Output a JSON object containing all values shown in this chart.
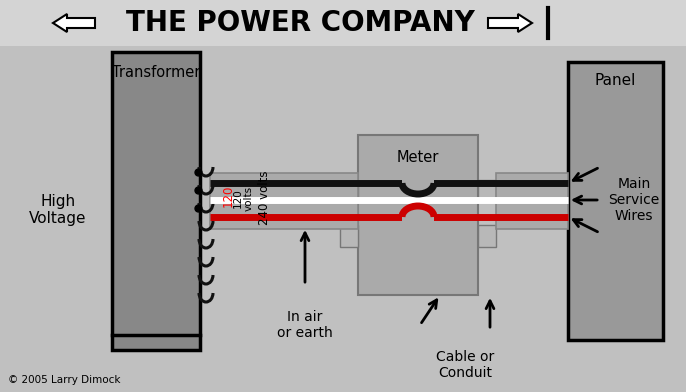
{
  "bg_color": "#c0c0c0",
  "title_bg": "#d4d4d4",
  "title_text": "THE POWER COMPANY",
  "title_fontsize": 20,
  "transformer_label": "Transformer",
  "high_voltage_label": "High\nVoltage",
  "panel_label": "Panel",
  "meter_label": "Meter",
  "main_service_label": "Main\nService\nWires",
  "label_120a": "120",
  "label_120b": "120\nvolts",
  "label_240": "240 volts",
  "label_in_air": "In air\nor earth",
  "label_cable": "Cable or\nConduit",
  "copyright": "© 2005 Larry Dimock",
  "wire_black": "#111111",
  "wire_white": "#ffffff",
  "wire_red": "#cc0000",
  "box_dark": "#909090",
  "box_light": "#b8b8b8",
  "coil_color": "#111111",
  "arrow_color": "#111111"
}
